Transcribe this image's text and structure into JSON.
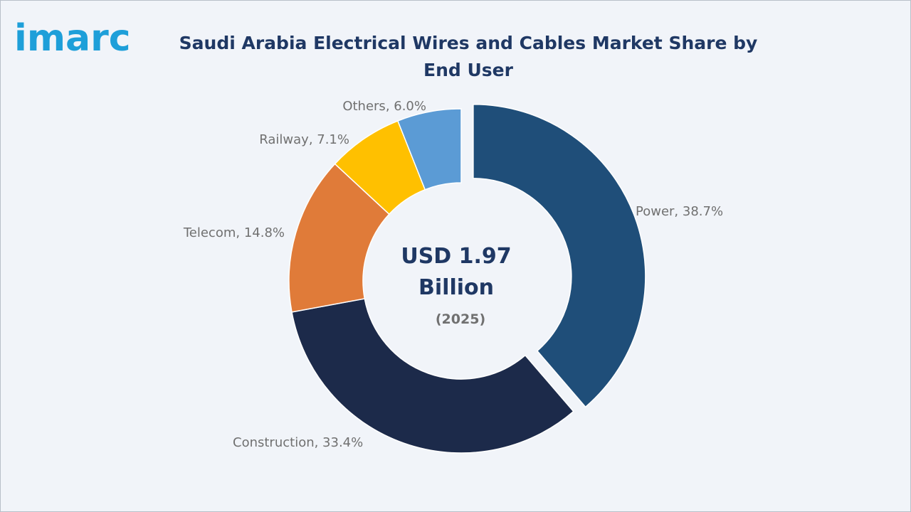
{
  "logo": "imarc",
  "chart_data": {
    "type": "pie",
    "variant": "donut",
    "title": "Saudi Arabia Electrical Wires and Cables Market Share by End User",
    "center_text": {
      "line1": "USD 1.97",
      "line2": "Billion",
      "line3": "(2025)"
    },
    "unit": "%",
    "slices": [
      {
        "name": "Power",
        "value": 38.7,
        "label": "Power, 38.7%",
        "color": "#1f4e79",
        "exploded": true
      },
      {
        "name": "Construction",
        "value": 33.4,
        "label": "Construction, 33.4%",
        "color": "#1c2a4a",
        "exploded": false
      },
      {
        "name": "Telecom",
        "value": 14.8,
        "label": "Telecom, 14.8%",
        "color": "#e07b39",
        "exploded": false
      },
      {
        "name": "Railway",
        "value": 7.1,
        "label": "Railway, 7.1%",
        "color": "#ffc000",
        "exploded": false
      },
      {
        "name": "Others",
        "value": 6.0,
        "label": "Others, 6.0%",
        "color": "#5b9bd5",
        "exploded": false
      }
    ]
  }
}
